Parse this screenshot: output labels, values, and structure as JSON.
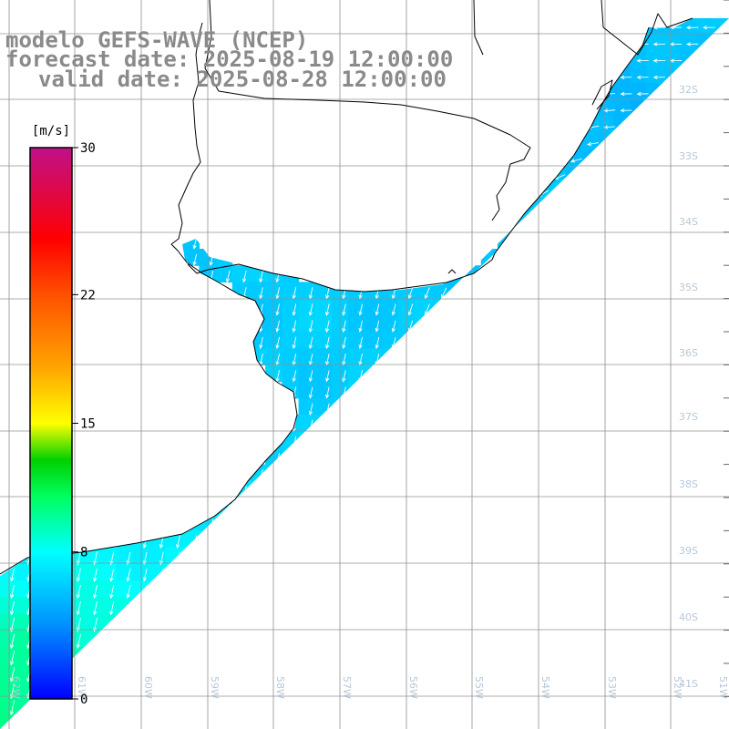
{
  "title": {
    "model": "modelo GEFS-WAVE (NCEP)",
    "forecast": "forecast date: 2025-08-19 12:00:00",
    "valid": "valid date: 2025-08-28 12:00:00"
  },
  "colorbar": {
    "unit": "[m/s]",
    "ticks": [
      "30",
      "22",
      "15",
      "8",
      "0"
    ],
    "tick_values": [
      30,
      22,
      15,
      8,
      0
    ],
    "range": [
      0,
      30
    ],
    "gradient": [
      {
        "v": 0,
        "c": "#0000ff"
      },
      {
        "v": 4,
        "c": "#0090ff"
      },
      {
        "v": 8,
        "c": "#00ffff"
      },
      {
        "v": 11,
        "c": "#00ff60"
      },
      {
        "v": 13,
        "c": "#00d000"
      },
      {
        "v": 15,
        "c": "#ffff00"
      },
      {
        "v": 18,
        "c": "#ffa500"
      },
      {
        "v": 22,
        "c": "#ff5000"
      },
      {
        "v": 25,
        "c": "#ff0000"
      },
      {
        "v": 30,
        "c": "#c0108a"
      }
    ]
  },
  "axes": {
    "lat_labels": [
      "32S",
      "33S",
      "34S",
      "35S",
      "36S",
      "37S",
      "38S",
      "39S",
      "40S",
      "41S"
    ],
    "lon_labels": [
      "62W",
      "61W",
      "60W",
      "59W",
      "58W",
      "57W",
      "56W",
      "55W",
      "54W",
      "53W",
      "52W",
      "51W"
    ]
  },
  "colors": {
    "land": "#ffffff",
    "coast": "#000000",
    "grid": "#909090",
    "arrow": "#ffffff",
    "title": "#8a8a8a"
  },
  "field": {
    "variable": "wind speed",
    "units": "m/s",
    "typical_range": [
      3,
      11
    ],
    "arrow_direction_north_sector": "toward west (onshore easterlies)",
    "arrow_direction_south_sector": "toward south-southwest"
  }
}
